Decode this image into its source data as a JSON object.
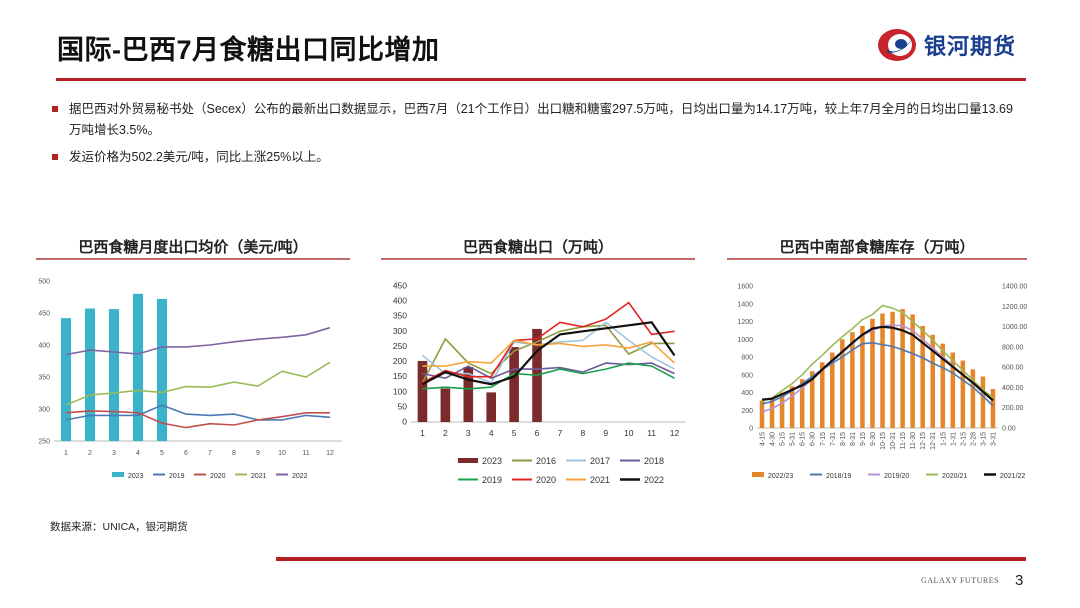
{
  "header": {
    "title": "国际-巴西7月食糖出口同比增加",
    "logo_text": "银河期货"
  },
  "bullets": [
    "据巴西对外贸易秘书处（Secex）公布的最新出口数据显示，巴西7月（21个工作日）出口糖和糖蜜297.5万吨，日均出口量为14.17万吨，较上年7月全月的日均出口量13.69万吨增长3.5%。",
    "发运价格为502.2美元/吨，同比上涨25%以上。"
  ],
  "source": "数据来源：UNICA，银河期货",
  "footer": {
    "brand": "GALAXY FUTURES",
    "page": "3"
  },
  "colors": {
    "accent": "#b52025",
    "brand_blue": "#1a3f8f"
  },
  "chart_data": [
    {
      "type": "bar+line",
      "title": "巴西食糖月度出口均价（美元/吨）",
      "categories": [
        "1",
        "2",
        "3",
        "4",
        "5",
        "6",
        "7",
        "8",
        "9",
        "10",
        "11",
        "12"
      ],
      "ylim": [
        250,
        500
      ],
      "yticks": [
        "250",
        "300",
        "350",
        "400",
        "450",
        "500"
      ],
      "bar_series": {
        "name": "2023",
        "color": "#3ab2c9",
        "values": [
          442,
          457,
          456,
          480,
          472
        ]
      },
      "series": [
        {
          "name": "2019",
          "color": "#4a7ab5",
          "values": [
            283,
            290,
            290,
            290,
            306,
            292,
            290,
            292,
            283,
            283,
            290,
            287
          ]
        },
        {
          "name": "2020",
          "color": "#c0504d",
          "values": [
            294,
            297,
            296,
            294,
            278,
            271,
            277,
            275,
            283,
            288,
            294,
            294
          ]
        },
        {
          "name": "2021",
          "color": "#9bbb59",
          "values": [
            306,
            322,
            325,
            329,
            326,
            335,
            334,
            342,
            336,
            359,
            350,
            373
          ]
        },
        {
          "name": "2022",
          "color": "#8064a2",
          "values": [
            385,
            392,
            389,
            386,
            397,
            397,
            400,
            405,
            409,
            412,
            416,
            427
          ]
        }
      ]
    },
    {
      "type": "bar+line",
      "title": "巴西食糖出口（万吨）",
      "categories": [
        "1",
        "2",
        "3",
        "4",
        "5",
        "6",
        "7",
        "8",
        "9",
        "10",
        "11",
        "12"
      ],
      "ylim": [
        0,
        450
      ],
      "yticks": [
        "0",
        "50",
        "100",
        "150",
        "200",
        "250",
        "300",
        "350",
        "400",
        "450"
      ],
      "bar_series": {
        "name": "2023",
        "color": "#7b2b2b",
        "values": [
          202,
          111,
          182,
          98,
          248,
          308
        ]
      },
      "series": [
        {
          "name": "2016",
          "color": "#8f9a3e",
          "values": [
            130,
            275,
            195,
            160,
            235,
            265,
            300,
            315,
            320,
            225,
            260,
            260
          ]
        },
        {
          "name": "2017",
          "color": "#9ec4df",
          "values": [
            220,
            160,
            160,
            130,
            265,
            255,
            265,
            270,
            330,
            270,
            215,
            175
          ]
        },
        {
          "name": "2018",
          "color": "#6c5a9b",
          "values": [
            160,
            145,
            185,
            145,
            175,
            175,
            180,
            165,
            195,
            190,
            195,
            160
          ]
        },
        {
          "name": "2019",
          "color": "#1aa04b",
          "values": [
            110,
            115,
            110,
            115,
            160,
            155,
            175,
            160,
            175,
            195,
            185,
            145
          ]
        },
        {
          "name": "2020",
          "color": "#e02424",
          "values": [
            130,
            170,
            150,
            150,
            270,
            275,
            330,
            315,
            340,
            395,
            290,
            300
          ]
        },
        {
          "name": "2021",
          "color": "#f5a33a",
          "values": [
            185,
            185,
            200,
            195,
            270,
            255,
            260,
            250,
            255,
            245,
            265,
            195
          ]
        },
        {
          "name": "2022",
          "color": "#111111",
          "values": [
            125,
            165,
            140,
            125,
            150,
            235,
            290,
            300,
            310,
            320,
            330,
            220
          ]
        }
      ]
    },
    {
      "type": "bar+line",
      "title": "巴西中南部食糖库存（万吨）",
      "categories": [
        "4-15",
        "4-30",
        "5-15",
        "5-31",
        "6-15",
        "6-30",
        "7-15",
        "7-31",
        "8-15",
        "8-31",
        "9-15",
        "9-30",
        "10-15",
        "10-31",
        "11-15",
        "11-30",
        "12-15",
        "12-31",
        "1-15",
        "1-31",
        "2-15",
        "2-28",
        "3-15",
        "3-31"
      ],
      "ylim": [
        0,
        1600
      ],
      "yticks": [
        "0",
        "200",
        "400",
        "600",
        "800",
        "1000",
        "1200",
        "1400",
        "1600"
      ],
      "y2lim": [
        0,
        1400
      ],
      "y2ticks": [
        "0.00",
        "200.00",
        "400.00",
        "600.00",
        "800.00",
        "1000.00",
        "1200.00",
        "1400.00"
      ],
      "bar_series": {
        "name": "2022/23",
        "color": "#e6862a",
        "values": [
          310,
          330,
          400,
          470,
          550,
          640,
          740,
          850,
          1000,
          1080,
          1150,
          1230,
          1290,
          1310,
          1340,
          1280,
          1150,
          1050,
          950,
          850,
          760,
          660,
          580,
          440
        ]
      },
      "series": [
        {
          "name": "2018/19",
          "color": "#4a7ab5",
          "values": [
            270,
            300,
            350,
            420,
            500,
            580,
            660,
            730,
            800,
            880,
            950,
            960,
            940,
            920,
            880,
            840,
            790,
            730,
            680,
            620,
            540,
            460,
            360,
            250
          ]
        },
        {
          "name": "2019/20",
          "color": "#b394d6",
          "values": [
            180,
            220,
            280,
            360,
            450,
            550,
            650,
            750,
            850,
            950,
            1050,
            1100,
            1150,
            1160,
            1150,
            1100,
            1000,
            900,
            800,
            700,
            600,
            500,
            400,
            310
          ]
        },
        {
          "name": "2020/21",
          "color": "#9bbb59",
          "values": [
            300,
            340,
            420,
            500,
            600,
            720,
            820,
            930,
            1030,
            1120,
            1220,
            1280,
            1380,
            1350,
            1300,
            1200,
            1100,
            990,
            870,
            760,
            650,
            540,
            430,
            340
          ]
        },
        {
          "name": "2021/22",
          "color": "#111111",
          "values": [
            320,
            330,
            380,
            430,
            480,
            550,
            660,
            760,
            860,
            960,
            1050,
            1120,
            1140,
            1130,
            1100,
            1050,
            960,
            870,
            780,
            690,
            600,
            510,
            410,
            310
          ]
        }
      ]
    }
  ]
}
